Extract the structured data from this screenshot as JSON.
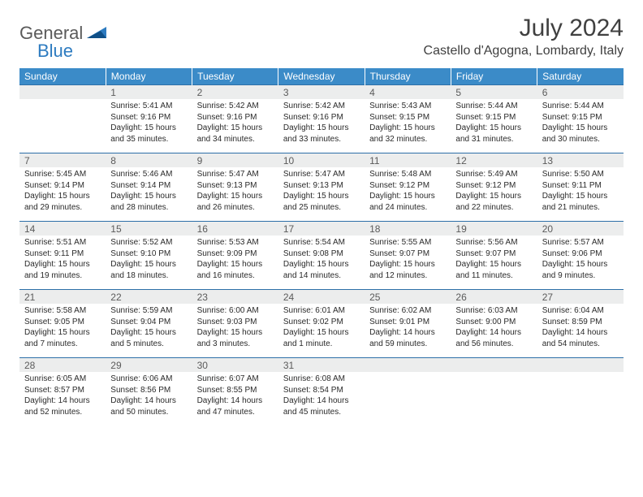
{
  "logo": {
    "word1": "General",
    "word2": "Blue"
  },
  "title": "July 2024",
  "location": "Castello d'Agogna, Lombardy, Italy",
  "dow": [
    "Sunday",
    "Monday",
    "Tuesday",
    "Wednesday",
    "Thursday",
    "Friday",
    "Saturday"
  ],
  "colors": {
    "header_bg": "#3b8bc8",
    "header_text": "#ffffff",
    "daynum_bg": "#eceded",
    "rule": "#2d6fa8",
    "body_text": "#2a2a2a",
    "title_text": "#404040",
    "logo_gray": "#5a5a5a",
    "logo_blue": "#2d7bc0"
  },
  "weeks": [
    [
      {
        "n": "",
        "sr": "",
        "ss": "",
        "dl": ""
      },
      {
        "n": "1",
        "sr": "Sunrise: 5:41 AM",
        "ss": "Sunset: 9:16 PM",
        "dl": "Daylight: 15 hours and 35 minutes."
      },
      {
        "n": "2",
        "sr": "Sunrise: 5:42 AM",
        "ss": "Sunset: 9:16 PM",
        "dl": "Daylight: 15 hours and 34 minutes."
      },
      {
        "n": "3",
        "sr": "Sunrise: 5:42 AM",
        "ss": "Sunset: 9:16 PM",
        "dl": "Daylight: 15 hours and 33 minutes."
      },
      {
        "n": "4",
        "sr": "Sunrise: 5:43 AM",
        "ss": "Sunset: 9:15 PM",
        "dl": "Daylight: 15 hours and 32 minutes."
      },
      {
        "n": "5",
        "sr": "Sunrise: 5:44 AM",
        "ss": "Sunset: 9:15 PM",
        "dl": "Daylight: 15 hours and 31 minutes."
      },
      {
        "n": "6",
        "sr": "Sunrise: 5:44 AM",
        "ss": "Sunset: 9:15 PM",
        "dl": "Daylight: 15 hours and 30 minutes."
      }
    ],
    [
      {
        "n": "7",
        "sr": "Sunrise: 5:45 AM",
        "ss": "Sunset: 9:14 PM",
        "dl": "Daylight: 15 hours and 29 minutes."
      },
      {
        "n": "8",
        "sr": "Sunrise: 5:46 AM",
        "ss": "Sunset: 9:14 PM",
        "dl": "Daylight: 15 hours and 28 minutes."
      },
      {
        "n": "9",
        "sr": "Sunrise: 5:47 AM",
        "ss": "Sunset: 9:13 PM",
        "dl": "Daylight: 15 hours and 26 minutes."
      },
      {
        "n": "10",
        "sr": "Sunrise: 5:47 AM",
        "ss": "Sunset: 9:13 PM",
        "dl": "Daylight: 15 hours and 25 minutes."
      },
      {
        "n": "11",
        "sr": "Sunrise: 5:48 AM",
        "ss": "Sunset: 9:12 PM",
        "dl": "Daylight: 15 hours and 24 minutes."
      },
      {
        "n": "12",
        "sr": "Sunrise: 5:49 AM",
        "ss": "Sunset: 9:12 PM",
        "dl": "Daylight: 15 hours and 22 minutes."
      },
      {
        "n": "13",
        "sr": "Sunrise: 5:50 AM",
        "ss": "Sunset: 9:11 PM",
        "dl": "Daylight: 15 hours and 21 minutes."
      }
    ],
    [
      {
        "n": "14",
        "sr": "Sunrise: 5:51 AM",
        "ss": "Sunset: 9:11 PM",
        "dl": "Daylight: 15 hours and 19 minutes."
      },
      {
        "n": "15",
        "sr": "Sunrise: 5:52 AM",
        "ss": "Sunset: 9:10 PM",
        "dl": "Daylight: 15 hours and 18 minutes."
      },
      {
        "n": "16",
        "sr": "Sunrise: 5:53 AM",
        "ss": "Sunset: 9:09 PM",
        "dl": "Daylight: 15 hours and 16 minutes."
      },
      {
        "n": "17",
        "sr": "Sunrise: 5:54 AM",
        "ss": "Sunset: 9:08 PM",
        "dl": "Daylight: 15 hours and 14 minutes."
      },
      {
        "n": "18",
        "sr": "Sunrise: 5:55 AM",
        "ss": "Sunset: 9:07 PM",
        "dl": "Daylight: 15 hours and 12 minutes."
      },
      {
        "n": "19",
        "sr": "Sunrise: 5:56 AM",
        "ss": "Sunset: 9:07 PM",
        "dl": "Daylight: 15 hours and 11 minutes."
      },
      {
        "n": "20",
        "sr": "Sunrise: 5:57 AM",
        "ss": "Sunset: 9:06 PM",
        "dl": "Daylight: 15 hours and 9 minutes."
      }
    ],
    [
      {
        "n": "21",
        "sr": "Sunrise: 5:58 AM",
        "ss": "Sunset: 9:05 PM",
        "dl": "Daylight: 15 hours and 7 minutes."
      },
      {
        "n": "22",
        "sr": "Sunrise: 5:59 AM",
        "ss": "Sunset: 9:04 PM",
        "dl": "Daylight: 15 hours and 5 minutes."
      },
      {
        "n": "23",
        "sr": "Sunrise: 6:00 AM",
        "ss": "Sunset: 9:03 PM",
        "dl": "Daylight: 15 hours and 3 minutes."
      },
      {
        "n": "24",
        "sr": "Sunrise: 6:01 AM",
        "ss": "Sunset: 9:02 PM",
        "dl": "Daylight: 15 hours and 1 minute."
      },
      {
        "n": "25",
        "sr": "Sunrise: 6:02 AM",
        "ss": "Sunset: 9:01 PM",
        "dl": "Daylight: 14 hours and 59 minutes."
      },
      {
        "n": "26",
        "sr": "Sunrise: 6:03 AM",
        "ss": "Sunset: 9:00 PM",
        "dl": "Daylight: 14 hours and 56 minutes."
      },
      {
        "n": "27",
        "sr": "Sunrise: 6:04 AM",
        "ss": "Sunset: 8:59 PM",
        "dl": "Daylight: 14 hours and 54 minutes."
      }
    ],
    [
      {
        "n": "28",
        "sr": "Sunrise: 6:05 AM",
        "ss": "Sunset: 8:57 PM",
        "dl": "Daylight: 14 hours and 52 minutes."
      },
      {
        "n": "29",
        "sr": "Sunrise: 6:06 AM",
        "ss": "Sunset: 8:56 PM",
        "dl": "Daylight: 14 hours and 50 minutes."
      },
      {
        "n": "30",
        "sr": "Sunrise: 6:07 AM",
        "ss": "Sunset: 8:55 PM",
        "dl": "Daylight: 14 hours and 47 minutes."
      },
      {
        "n": "31",
        "sr": "Sunrise: 6:08 AM",
        "ss": "Sunset: 8:54 PM",
        "dl": "Daylight: 14 hours and 45 minutes."
      },
      {
        "n": "",
        "sr": "",
        "ss": "",
        "dl": ""
      },
      {
        "n": "",
        "sr": "",
        "ss": "",
        "dl": ""
      },
      {
        "n": "",
        "sr": "",
        "ss": "",
        "dl": ""
      }
    ]
  ]
}
